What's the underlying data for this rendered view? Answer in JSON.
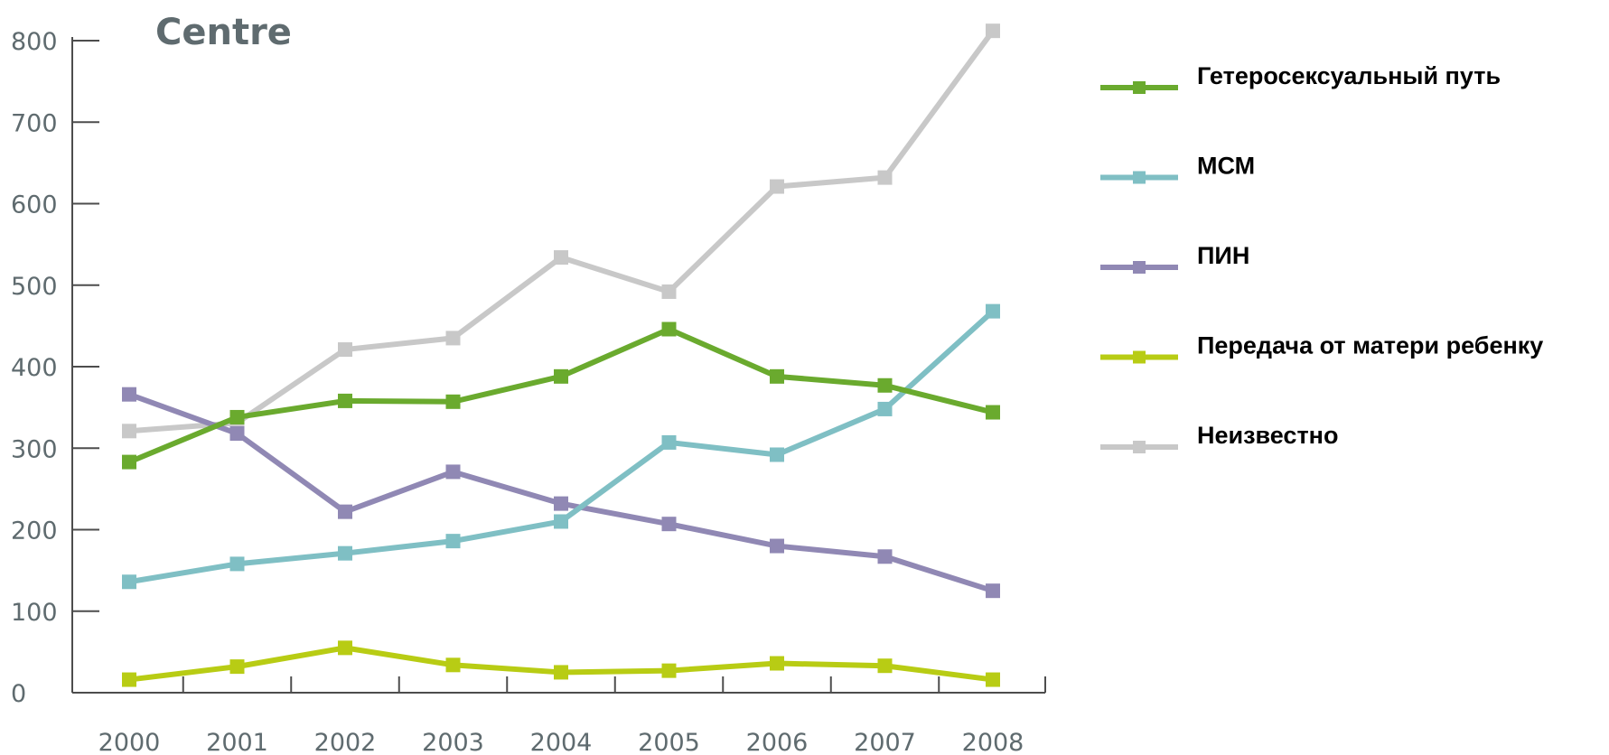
{
  "chart_data": {
    "type": "line",
    "title": "Centre",
    "xlabel": "",
    "ylabel": "",
    "x": [
      "2000",
      "2001",
      "2002",
      "2003",
      "2004",
      "2005",
      "2006",
      "2007",
      "2008"
    ],
    "y_ticks": [
      "0",
      "100",
      "200",
      "300",
      "400",
      "500",
      "600",
      "700",
      "800"
    ],
    "ylim": [
      0,
      800
    ],
    "grid": false,
    "legend_position": "right",
    "series": [
      {
        "name": "Гетеросексуальный путь",
        "color": "#6aaa2e",
        "values": [
          283,
          338,
          358,
          357,
          388,
          446,
          388,
          377,
          344
        ]
      },
      {
        "name": "МСМ",
        "color": "#7fbfc4",
        "values": [
          136,
          158,
          171,
          186,
          210,
          307,
          292,
          348,
          468
        ]
      },
      {
        "name": "ПИН",
        "color": "#9088b4",
        "values": [
          366,
          318,
          222,
          271,
          232,
          207,
          180,
          167,
          125
        ]
      },
      {
        "name": "Передача от матери ребенку",
        "color": "#b8cc14",
        "values": [
          16,
          32,
          55,
          34,
          25,
          27,
          36,
          33,
          16
        ]
      },
      {
        "name": "Неизвестно",
        "color": "#c8c8c8",
        "values": [
          321,
          331,
          421,
          435,
          534,
          492,
          621,
          632,
          812
        ]
      }
    ]
  }
}
